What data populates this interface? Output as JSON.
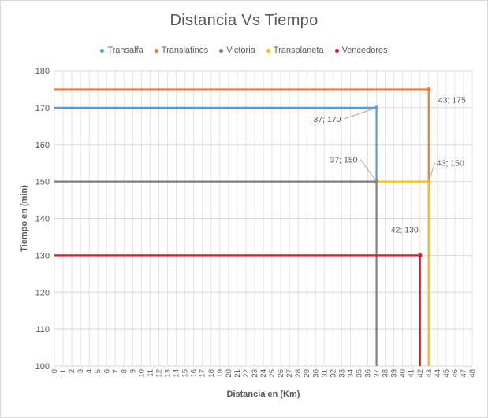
{
  "chart_data": {
    "type": "line",
    "title": "Distancia Vs Tiempo",
    "xlabel": "Distancia en (Km)",
    "ylabel": "Tiempo en (min)",
    "xlim": [
      0,
      48
    ],
    "ylim": [
      100,
      180
    ],
    "x_ticks": [
      0,
      1,
      2,
      3,
      4,
      5,
      6,
      7,
      8,
      9,
      10,
      11,
      12,
      13,
      14,
      15,
      16,
      17,
      18,
      19,
      20,
      21,
      22,
      23,
      24,
      25,
      26,
      27,
      28,
      29,
      30,
      31,
      32,
      33,
      34,
      35,
      36,
      37,
      38,
      39,
      40,
      41,
      42,
      43,
      44,
      45,
      46,
      47,
      48
    ],
    "y_ticks": [
      100,
      110,
      120,
      130,
      140,
      150,
      160,
      170,
      180
    ],
    "grid": true,
    "legend_position": "top",
    "series": [
      {
        "name": "Transalfa",
        "color": "#5b9bd5",
        "points": [
          [
            0,
            170
          ],
          [
            37,
            170
          ],
          [
            37,
            150
          ]
        ],
        "label_point": [
          37,
          170
        ],
        "label": "37; 170"
      },
      {
        "name": "Translatinos",
        "color": "#ed7d31",
        "points": [
          [
            0,
            175
          ],
          [
            43,
            175
          ],
          [
            43,
            100
          ]
        ],
        "label_point": [
          43,
          175
        ],
        "label": "43; 175"
      },
      {
        "name": "Victoria",
        "color": "#7f7f7f",
        "points": [
          [
            0,
            150
          ],
          [
            37,
            150
          ],
          [
            37,
            100
          ]
        ],
        "label_point": [
          37,
          150
        ],
        "label": "37; 150"
      },
      {
        "name": "Transplaneta",
        "color": "#ffc000",
        "points": [
          [
            37,
            150
          ],
          [
            43,
            150
          ],
          [
            43,
            100
          ]
        ],
        "label_point": [
          43,
          150
        ],
        "label": "43; 150"
      },
      {
        "name": "Vencedores",
        "color": "#e31a1c",
        "points": [
          [
            0,
            130
          ],
          [
            42,
            130
          ],
          [
            42,
            100
          ]
        ],
        "label_point": [
          42,
          130
        ],
        "label": "42; 130"
      }
    ]
  }
}
